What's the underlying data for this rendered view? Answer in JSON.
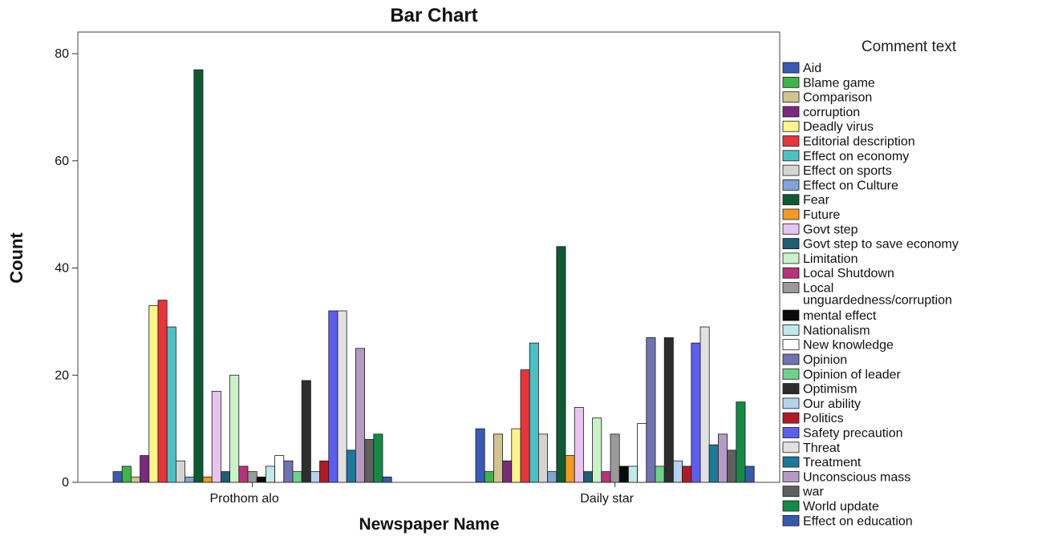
{
  "chart_data": {
    "type": "bar",
    "title": "Bar Chart",
    "xlabel": "Newspaper Name",
    "ylabel": "Count",
    "ylim": [
      0,
      85
    ],
    "yticks": [
      0,
      20,
      40,
      60,
      80
    ],
    "categories": [
      "Prothom alo",
      "Daily star"
    ],
    "legend_title": "Comment text",
    "legend_position": "right",
    "grid": false,
    "series": [
      {
        "name": "Aid",
        "color": "#3a5bb5",
        "values": [
          2,
          10
        ]
      },
      {
        "name": "Blame game",
        "color": "#3cb54a",
        "values": [
          3,
          2
        ]
      },
      {
        "name": "Comparison",
        "color": "#d2c48e",
        "values": [
          1,
          9
        ]
      },
      {
        "name": "corruption",
        "color": "#7b2a7e",
        "values": [
          5,
          4
        ]
      },
      {
        "name": "Deadly virus",
        "color": "#fbf58a",
        "values": [
          33,
          10
        ]
      },
      {
        "name": "Editorial description",
        "color": "#e8353a",
        "values": [
          34,
          21
        ]
      },
      {
        "name": "Effect on economy",
        "color": "#4cc1c4",
        "values": [
          29,
          26
        ]
      },
      {
        "name": "Effect on sports",
        "color": "#d4d4d4",
        "values": [
          4,
          9
        ]
      },
      {
        "name": "Effect on Culture",
        "color": "#7fa4d8",
        "values": [
          1,
          2
        ]
      },
      {
        "name": "Fear",
        "color": "#0d5a33",
        "values": [
          77,
          44
        ]
      },
      {
        "name": "Future",
        "color": "#f39a21",
        "values": [
          1,
          5
        ]
      },
      {
        "name": "Govt step",
        "color": "#e6c4ef",
        "values": [
          17,
          14
        ]
      },
      {
        "name": "Govt step to save economy",
        "color": "#1e5f73",
        "values": [
          2,
          2
        ]
      },
      {
        "name": "Limitation",
        "color": "#c9f2c9",
        "values": [
          20,
          12
        ]
      },
      {
        "name": "Local Shutdown",
        "color": "#b8327a",
        "values": [
          3,
          2
        ]
      },
      {
        "name": "Local unguardedness/corruption",
        "color": "#9a9a9a",
        "values": [
          2,
          9
        ]
      },
      {
        "name": "mental effect",
        "color": "#0a0a0a",
        "values": [
          1,
          3
        ]
      },
      {
        "name": "Nationalism",
        "color": "#bfe9ea",
        "values": [
          3,
          3
        ]
      },
      {
        "name": "New knowledge",
        "color": "#ffffff",
        "values": [
          5,
          11
        ]
      },
      {
        "name": "Opinion",
        "color": "#6f73b4",
        "values": [
          4,
          27
        ]
      },
      {
        "name": "Opinion of leader",
        "color": "#6fd28a",
        "values": [
          2,
          3
        ]
      },
      {
        "name": "Optimism",
        "color": "#2e2e2e",
        "values": [
          19,
          27
        ]
      },
      {
        "name": "Our ability",
        "color": "#b4d3f1",
        "values": [
          2,
          4
        ]
      },
      {
        "name": "Politics",
        "color": "#b31b22",
        "values": [
          4,
          3
        ]
      },
      {
        "name": "Safety precaution",
        "color": "#5b5ff0",
        "values": [
          32,
          26
        ]
      },
      {
        "name": "Threat",
        "color": "#e1e1e1",
        "values": [
          32,
          29
        ]
      },
      {
        "name": "Treatment",
        "color": "#1a7a9a",
        "values": [
          6,
          7
        ]
      },
      {
        "name": "Unconscious mass",
        "color": "#b79ac4",
        "values": [
          25,
          9
        ]
      },
      {
        "name": "war",
        "color": "#5f5f5f",
        "values": [
          8,
          6
        ]
      },
      {
        "name": "World update",
        "color": "#148a47",
        "values": [
          9,
          15
        ]
      },
      {
        "name": "Effect on education",
        "color": "#3559b0",
        "values": [
          1,
          3
        ]
      }
    ]
  }
}
